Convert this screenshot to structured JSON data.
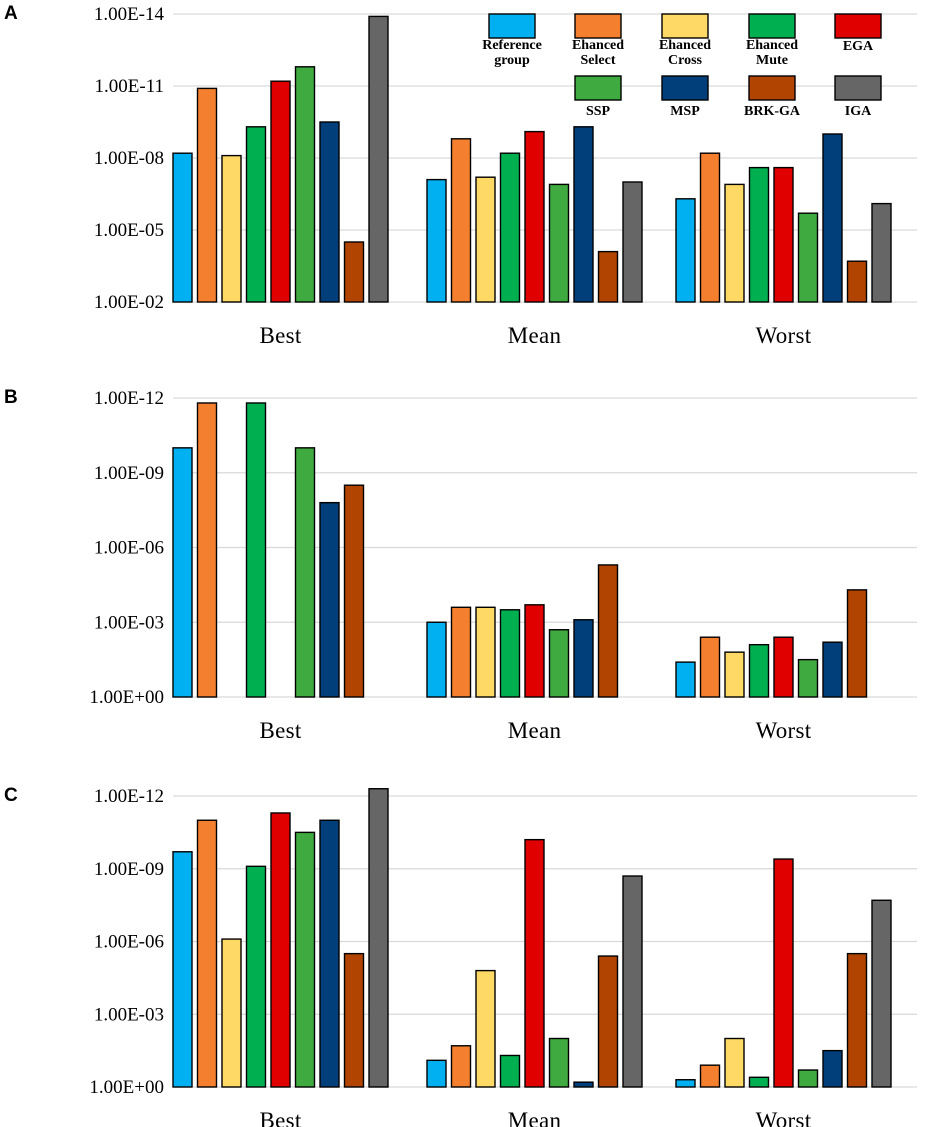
{
  "series": [
    {
      "key": "ref",
      "name": "Reference group",
      "label_lines": [
        "Reference",
        "group"
      ],
      "color": "#00b0f0"
    },
    {
      "key": "esel",
      "name": "Ehanced Select",
      "label_lines": [
        "Ehanced",
        "Select"
      ],
      "color": "#f4802f"
    },
    {
      "key": "ecross",
      "name": "Ehanced Cross",
      "label_lines": [
        "Ehanced",
        "Cross"
      ],
      "color": "#ffd966"
    },
    {
      "key": "emute",
      "name": "Ehanced Mute",
      "label_lines": [
        "Ehanced",
        "Mute"
      ],
      "color": "#00b050"
    },
    {
      "key": "ega",
      "name": "EGA",
      "label_lines": [
        "EGA"
      ],
      "color": "#e00000"
    },
    {
      "key": "ssp",
      "name": "SSP",
      "label_lines": [
        "SSP"
      ],
      "color": "#3faa3f"
    },
    {
      "key": "msp",
      "name": "MSP",
      "label_lines": [
        "MSP"
      ],
      "color": "#003f7a"
    },
    {
      "key": "brk",
      "name": "BRK-GA",
      "label_lines": [
        "BRK-GA"
      ],
      "color": "#b04400"
    },
    {
      "key": "iga",
      "name": "IGA",
      "label_lines": [
        "IGA"
      ],
      "color": "#666666"
    }
  ],
  "chart_data": [
    {
      "panel": "A",
      "type": "bar",
      "scale": "log10",
      "note": "values are exponents of 10 in 1.00E-n notation; larger n is plotted higher",
      "categories": [
        "Best",
        "Mean",
        "Worst"
      ],
      "yticks": [
        "1.00E-02",
        "1.00E-05",
        "1.00E-08",
        "1.00E-11",
        "1.00E-14"
      ],
      "ylim_exponent": [
        2,
        14
      ],
      "show_legend": true,
      "series_values": {
        "ref": [
          8.2,
          7.1,
          6.3
        ],
        "esel": [
          10.9,
          8.8,
          8.2
        ],
        "ecross": [
          8.1,
          7.2,
          6.9
        ],
        "emute": [
          9.3,
          8.2,
          7.6
        ],
        "ega": [
          11.2,
          9.1,
          7.6
        ],
        "ssp": [
          11.8,
          6.9,
          5.7
        ],
        "msp": [
          9.5,
          9.3,
          9.0
        ],
        "brk": [
          4.5,
          4.1,
          3.7
        ],
        "iga": [
          13.9,
          7.0,
          6.1
        ]
      }
    },
    {
      "panel": "B",
      "type": "bar",
      "scale": "log10",
      "note": "values are exponents of 10 in 1.00E-n notation",
      "categories": [
        "Best",
        "Mean",
        "Worst"
      ],
      "yticks": [
        "1.00E+00",
        "1.00E-03",
        "1.00E-06",
        "1.00E-09",
        "1.00E-12"
      ],
      "ylim_exponent": [
        0,
        12
      ],
      "show_legend": false,
      "series_values": {
        "ref": [
          10.0,
          3.0,
          1.4
        ],
        "esel": [
          11.8,
          3.6,
          2.4
        ],
        "ecross": [
          null,
          3.6,
          1.8
        ],
        "emute": [
          11.8,
          3.5,
          2.1
        ],
        "ega": [
          null,
          3.7,
          2.4
        ],
        "ssp": [
          10.0,
          2.7,
          1.5
        ],
        "msp": [
          7.8,
          3.1,
          2.2
        ],
        "brk": [
          8.5,
          5.3,
          4.3
        ],
        "iga": [
          null,
          null,
          null
        ]
      }
    },
    {
      "panel": "C",
      "type": "bar",
      "scale": "log10",
      "note": "values are exponents of 10 in 1.00E-n notation",
      "categories": [
        "Best",
        "Mean",
        "Worst"
      ],
      "yticks": [
        "1.00E+00",
        "1.00E-03",
        "1.00E-06",
        "1.00E-09",
        "1.00E-12"
      ],
      "ylim_exponent": [
        0,
        12
      ],
      "show_legend": false,
      "series_values": {
        "ref": [
          9.7,
          1.1,
          0.3
        ],
        "esel": [
          11.0,
          1.7,
          0.9
        ],
        "ecross": [
          6.1,
          4.8,
          2.0
        ],
        "emute": [
          9.1,
          1.3,
          0.4
        ],
        "ega": [
          11.3,
          10.2,
          9.4
        ],
        "ssp": [
          10.5,
          2.0,
          0.7
        ],
        "msp": [
          11.0,
          0.2,
          1.5
        ],
        "brk": [
          5.5,
          5.4,
          5.5
        ],
        "iga": [
          12.3,
          8.7,
          7.7
        ]
      }
    }
  ]
}
